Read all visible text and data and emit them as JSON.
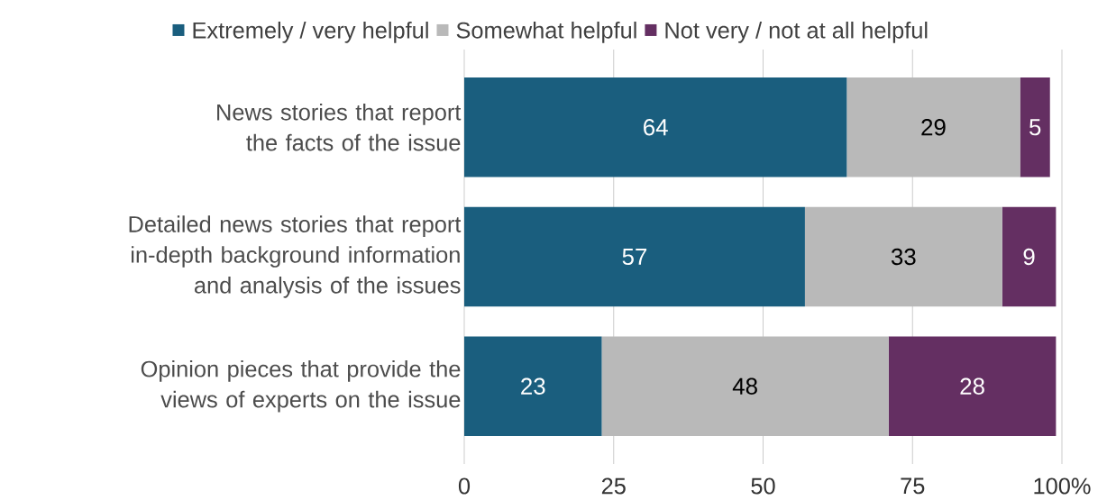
{
  "chart_data": {
    "type": "bar",
    "orientation": "horizontal",
    "stacked": true,
    "categories": [
      "News stories that report the facts of the issue",
      "Detailed news stories that report in-depth background information and analysis of the issues",
      "Opinion pieces that provide the views of experts on the issue"
    ],
    "series": [
      {
        "name": "Extremely / very helpful",
        "color": "#1a5e7e",
        "values": [
          64,
          57,
          23
        ]
      },
      {
        "name": "Somewhat helpful",
        "color": "#b9b9b9",
        "values": [
          29,
          33,
          48
        ]
      },
      {
        "name": "Not very / not at all helpful",
        "color": "#642f62",
        "values": [
          5,
          9,
          28
        ]
      }
    ],
    "xlim": [
      0,
      100
    ],
    "xticks": [
      0,
      25,
      50,
      75,
      {
        "value": 100,
        "label": "100%"
      }
    ],
    "grid": "x",
    "legend": "top",
    "data_labels": true
  }
}
